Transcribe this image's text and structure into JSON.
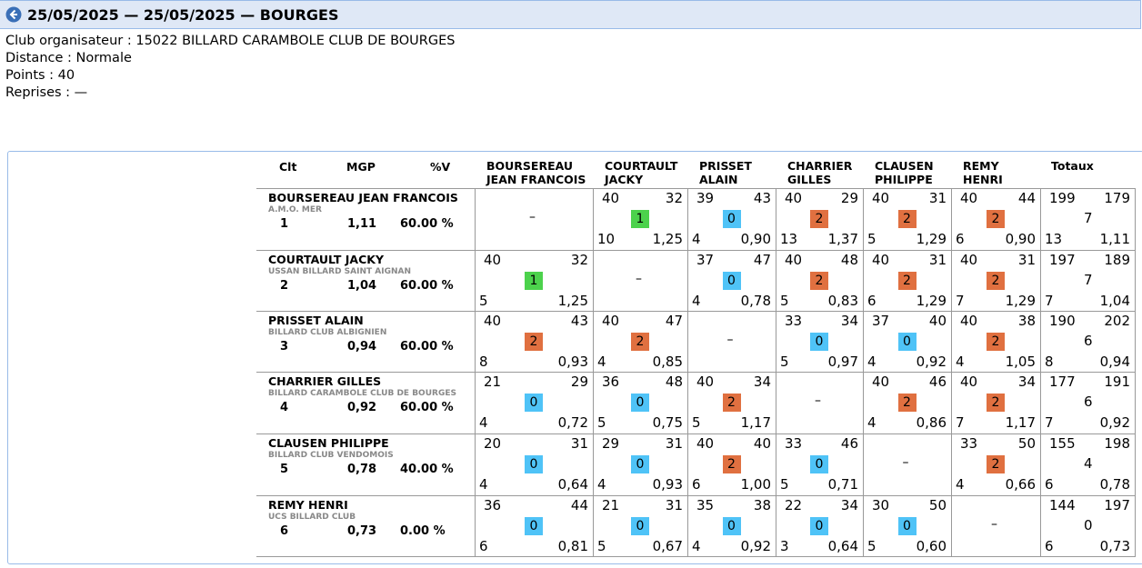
{
  "header": {
    "title": "25/05/2025 — 25/05/2025 — BOURGES"
  },
  "info": {
    "club": "Club organisateur : 15022 BILLARD CARAMBOLE CLUB DE BOURGES",
    "distance": "Distance : Normale",
    "points": "Points : 40",
    "reprises": "Reprises : —"
  },
  "colors": {
    "win": "#4cd24c",
    "draw": "#e07040",
    "loss": "#4fc3f7",
    "titlebar": "#dfe8f6"
  },
  "columns": {
    "clt": "Clt",
    "mgp": "MGP",
    "pv": "%V",
    "opponents": [
      [
        "BOURSEREAU",
        "JEAN FRANCOIS"
      ],
      [
        "COURTAULT",
        "JACKY"
      ],
      [
        "PRISSET",
        "ALAIN"
      ],
      [
        "CHARRIER",
        "GILLES"
      ],
      [
        "CLAUSEN",
        "PHILIPPE"
      ],
      [
        "REMY",
        "HENRI"
      ]
    ],
    "totaux": "Totaux"
  },
  "players": [
    {
      "name": "BOURSEREAU JEAN FRANCOIS",
      "club": "A.M.O. MER",
      "clt": "1",
      "mgp": "1,11",
      "pv": "60.00 %",
      "cells": [
        null,
        {
          "a": "40",
          "b": "32",
          "pts": "1",
          "rep": "10",
          "moy": "1,25"
        },
        {
          "a": "39",
          "b": "43",
          "pts": "0",
          "rep": "4",
          "moy": "0,90"
        },
        {
          "a": "40",
          "b": "29",
          "pts": "2",
          "rep": "13",
          "moy": "1,37"
        },
        {
          "a": "40",
          "b": "31",
          "pts": "2",
          "rep": "5",
          "moy": "1,29"
        },
        {
          "a": "40",
          "b": "44",
          "pts": "2",
          "rep": "6",
          "moy": "0,90"
        }
      ],
      "total": {
        "a": "199",
        "b": "179",
        "pts": "7",
        "rep": "13",
        "moy": "1,11"
      }
    },
    {
      "name": "COURTAULT JACKY",
      "club": "USSAN BILLARD SAINT AIGNAN",
      "clt": "2",
      "mgp": "1,04",
      "pv": "60.00 %",
      "cells": [
        {
          "a": "40",
          "b": "32",
          "pts": "1",
          "rep": "5",
          "moy": "1,25"
        },
        null,
        {
          "a": "37",
          "b": "47",
          "pts": "0",
          "rep": "4",
          "moy": "0,78"
        },
        {
          "a": "40",
          "b": "48",
          "pts": "2",
          "rep": "5",
          "moy": "0,83"
        },
        {
          "a": "40",
          "b": "31",
          "pts": "2",
          "rep": "6",
          "moy": "1,29"
        },
        {
          "a": "40",
          "b": "31",
          "pts": "2",
          "rep": "7",
          "moy": "1,29"
        }
      ],
      "total": {
        "a": "197",
        "b": "189",
        "pts": "7",
        "rep": "7",
        "moy": "1,04"
      }
    },
    {
      "name": "PRISSET ALAIN",
      "club": "BILLARD CLUB ALBIGNIEN",
      "clt": "3",
      "mgp": "0,94",
      "pv": "60.00 %",
      "cells": [
        {
          "a": "40",
          "b": "43",
          "pts": "2",
          "rep": "8",
          "moy": "0,93"
        },
        {
          "a": "40",
          "b": "47",
          "pts": "2",
          "rep": "4",
          "moy": "0,85"
        },
        null,
        {
          "a": "33",
          "b": "34",
          "pts": "0",
          "rep": "5",
          "moy": "0,97"
        },
        {
          "a": "37",
          "b": "40",
          "pts": "0",
          "rep": "4",
          "moy": "0,92"
        },
        {
          "a": "40",
          "b": "38",
          "pts": "2",
          "rep": "4",
          "moy": "1,05"
        }
      ],
      "total": {
        "a": "190",
        "b": "202",
        "pts": "6",
        "rep": "8",
        "moy": "0,94"
      }
    },
    {
      "name": "CHARRIER GILLES",
      "club": "BILLARD CARAMBOLE CLUB DE BOURGES",
      "clt": "4",
      "mgp": "0,92",
      "pv": "60.00 %",
      "cells": [
        {
          "a": "21",
          "b": "29",
          "pts": "0",
          "rep": "4",
          "moy": "0,72"
        },
        {
          "a": "36",
          "b": "48",
          "pts": "0",
          "rep": "5",
          "moy": "0,75"
        },
        {
          "a": "40",
          "b": "34",
          "pts": "2",
          "rep": "5",
          "moy": "1,17"
        },
        null,
        {
          "a": "40",
          "b": "46",
          "pts": "2",
          "rep": "4",
          "moy": "0,86"
        },
        {
          "a": "40",
          "b": "34",
          "pts": "2",
          "rep": "7",
          "moy": "1,17"
        }
      ],
      "total": {
        "a": "177",
        "b": "191",
        "pts": "6",
        "rep": "7",
        "moy": "0,92"
      }
    },
    {
      "name": "CLAUSEN PHILIPPE",
      "club": "BILLARD CLUB VENDOMOIS",
      "clt": "5",
      "mgp": "0,78",
      "pv": "40.00 %",
      "cells": [
        {
          "a": "20",
          "b": "31",
          "pts": "0",
          "rep": "4",
          "moy": "0,64"
        },
        {
          "a": "29",
          "b": "31",
          "pts": "0",
          "rep": "4",
          "moy": "0,93"
        },
        {
          "a": "40",
          "b": "40",
          "pts": "2",
          "rep": "6",
          "moy": "1,00"
        },
        {
          "a": "33",
          "b": "46",
          "pts": "0",
          "rep": "5",
          "moy": "0,71"
        },
        null,
        {
          "a": "33",
          "b": "50",
          "pts": "2",
          "rep": "4",
          "moy": "0,66"
        }
      ],
      "total": {
        "a": "155",
        "b": "198",
        "pts": "4",
        "rep": "6",
        "moy": "0,78"
      }
    },
    {
      "name": "REMY HENRI",
      "club": "UCS BILLARD CLUB",
      "clt": "6",
      "mgp": "0,73",
      "pv": "0.00 %",
      "cells": [
        {
          "a": "36",
          "b": "44",
          "pts": "0",
          "rep": "6",
          "moy": "0,81"
        },
        {
          "a": "21",
          "b": "31",
          "pts": "0",
          "rep": "5",
          "moy": "0,67"
        },
        {
          "a": "35",
          "b": "38",
          "pts": "0",
          "rep": "4",
          "moy": "0,92"
        },
        {
          "a": "22",
          "b": "34",
          "pts": "0",
          "rep": "3",
          "moy": "0,64"
        },
        {
          "a": "30",
          "b": "50",
          "pts": "0",
          "rep": "5",
          "moy": "0,60"
        },
        null
      ],
      "total": {
        "a": "144",
        "b": "197",
        "pts": "0",
        "rep": "6",
        "moy": "0,73"
      }
    }
  ],
  "empty_cell": "–"
}
